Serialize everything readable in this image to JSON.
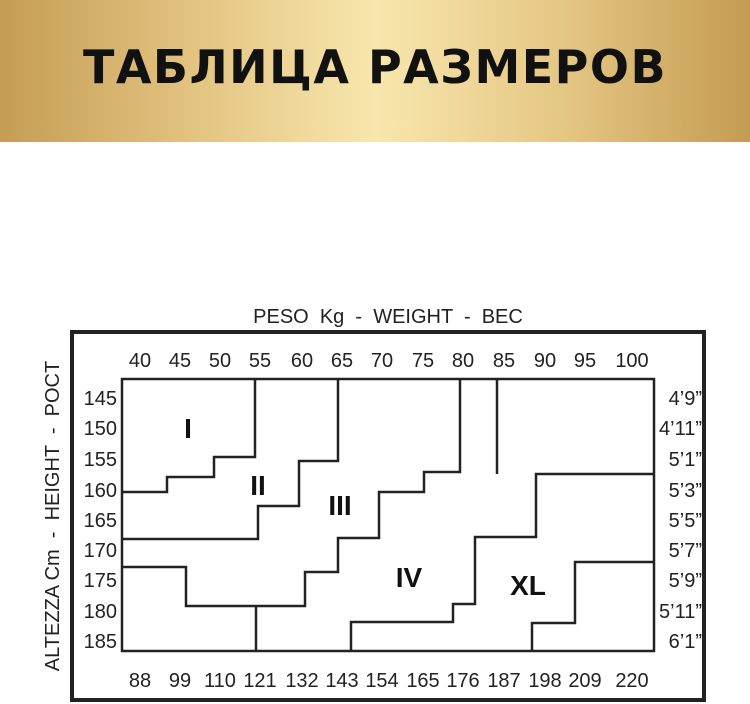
{
  "title": "ТАБЛИЦА РАЗМЕРОВ",
  "weight_axis_title": "PESO  Kg  -  WEIGHT  -  BEC",
  "height_axis_title": "ALTEZZA Cm  -  HEIGHT  -  POCT",
  "weight_kg": [
    "40",
    "45",
    "50",
    "55",
    "60",
    "65",
    "70",
    "75",
    "80",
    "85",
    "90",
    "95",
    "100"
  ],
  "weight_lbs": [
    "88",
    "99",
    "110",
    "121",
    "132",
    "143",
    "154",
    "165",
    "176",
    "187",
    "198",
    "209",
    "220"
  ],
  "height_cm": [
    "145",
    "150",
    "155",
    "160",
    "165",
    "170",
    "175",
    "180",
    "185"
  ],
  "height_ft": [
    "4’9”",
    "4’11”",
    "5’1”",
    "5’3”",
    "5’5”",
    "5’7”",
    "5’9”",
    "5’11”",
    "6’1”"
  ],
  "sizes": [
    "I",
    "II",
    "III",
    "IV",
    "XL"
  ]
}
